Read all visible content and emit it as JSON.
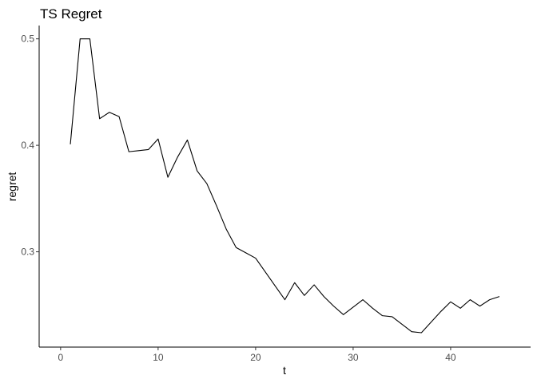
{
  "chart_data": {
    "type": "line",
    "title": "TS Regret",
    "xlabel": "t",
    "ylabel": "regret",
    "xlim": [
      -2.2,
      48.2
    ],
    "ylim": [
      0.2105,
      0.5125
    ],
    "x_ticks": [
      0,
      10,
      20,
      30,
      40
    ],
    "y_ticks": [
      0.3,
      0.4,
      0.5
    ],
    "x_tick_labels": [
      "0",
      "10",
      "20",
      "30",
      "40"
    ],
    "y_tick_labels": [
      "0.3",
      "0.4",
      "0.5"
    ],
    "grid": false,
    "legend": "none",
    "color": "#000000",
    "series": [
      {
        "x": [
          1,
          2,
          3,
          4,
          5,
          6,
          7,
          8,
          9,
          10,
          11,
          12,
          13,
          14,
          15,
          16,
          17,
          18,
          19,
          20,
          21,
          22,
          23,
          24,
          25,
          26,
          27,
          28,
          29,
          30,
          31,
          32,
          33,
          34,
          35,
          36,
          37,
          38,
          39,
          40,
          41,
          42,
          43,
          44,
          45
        ],
        "values": [
          0.401,
          0.5,
          0.5,
          0.425,
          0.431,
          0.427,
          0.394,
          0.395,
          0.396,
          0.406,
          0.37,
          0.389,
          0.405,
          0.376,
          0.364,
          0.343,
          0.321,
          0.304,
          0.299,
          0.294,
          0.281,
          0.268,
          0.255,
          0.271,
          0.259,
          0.269,
          0.258,
          0.249,
          0.241,
          0.248,
          0.255,
          0.247,
          0.24,
          0.239,
          0.232,
          0.225,
          0.224,
          0.234,
          0.244,
          0.253,
          0.247,
          0.255,
          0.249,
          0.255,
          0.258
        ]
      }
    ]
  }
}
